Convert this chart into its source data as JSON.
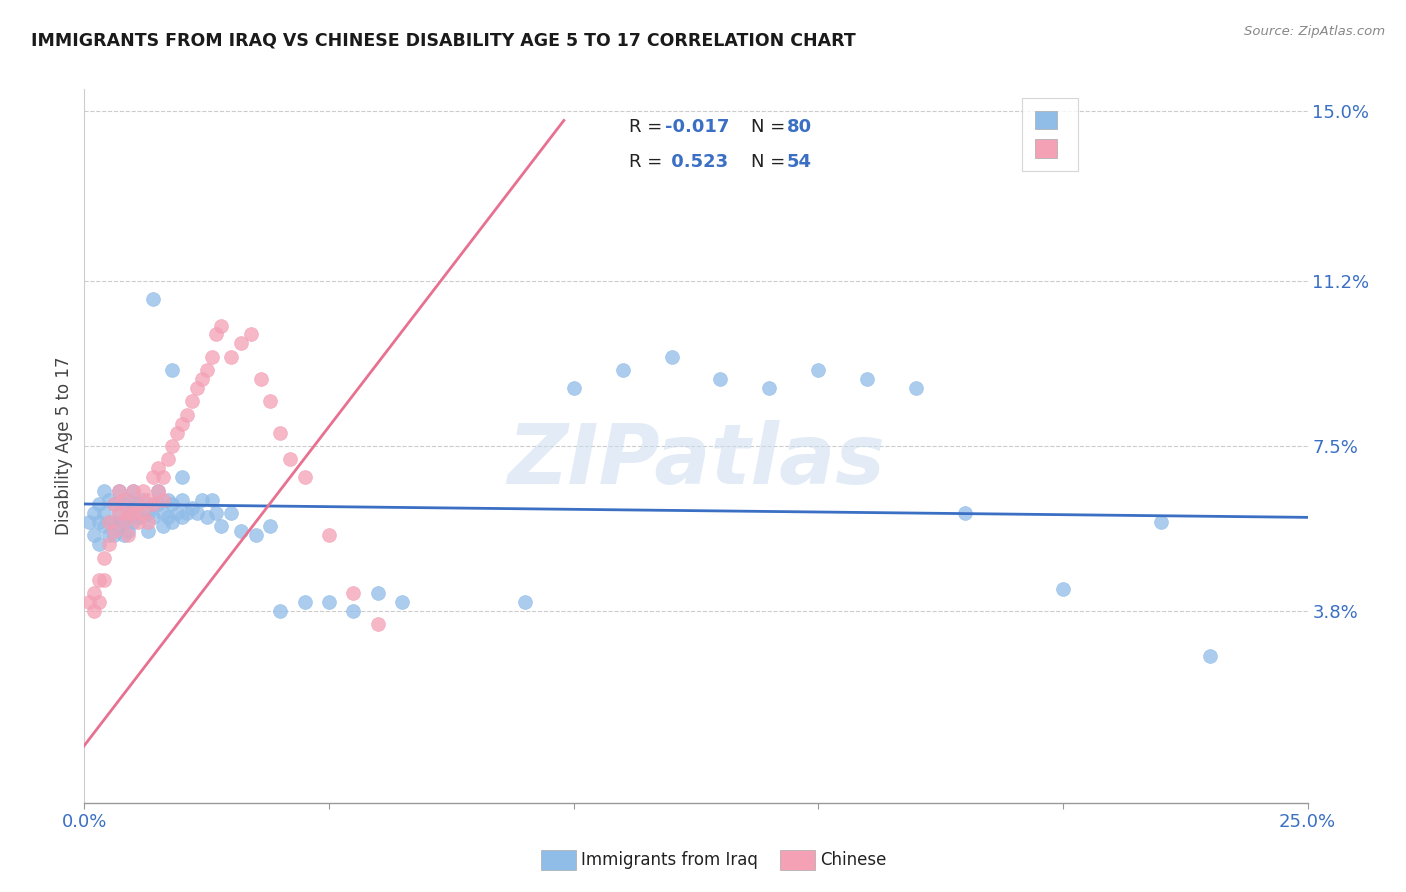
{
  "title": "IMMIGRANTS FROM IRAQ VS CHINESE DISABILITY AGE 5 TO 17 CORRELATION CHART",
  "source": "Source: ZipAtlas.com",
  "ylabel": "Disability Age 5 to 17",
  "xlim": [
    0.0,
    0.25
  ],
  "ylim": [
    -0.005,
    0.155
  ],
  "ytick_labels": [
    "3.8%",
    "7.5%",
    "11.2%",
    "15.0%"
  ],
  "ytick_positions": [
    0.038,
    0.075,
    0.112,
    0.15
  ],
  "xtick_positions": [
    0.0,
    0.05,
    0.1,
    0.15,
    0.2,
    0.25
  ],
  "watermark": "ZIPatlas",
  "iraq_color": "#90bce8",
  "chinese_color": "#f4a0b5",
  "iraq_line_color": "#3a6fc4",
  "chinese_line_color": "#e87090",
  "iraq_R": "-0.017",
  "iraq_N": "80",
  "chinese_R": "0.523",
  "chinese_N": "54",
  "iraq_scatter_x": [
    0.001,
    0.002,
    0.002,
    0.003,
    0.003,
    0.003,
    0.004,
    0.004,
    0.004,
    0.005,
    0.005,
    0.005,
    0.006,
    0.006,
    0.006,
    0.007,
    0.007,
    0.007,
    0.008,
    0.008,
    0.008,
    0.009,
    0.009,
    0.009,
    0.01,
    0.01,
    0.01,
    0.011,
    0.011,
    0.012,
    0.012,
    0.013,
    0.013,
    0.014,
    0.014,
    0.015,
    0.015,
    0.016,
    0.016,
    0.017,
    0.017,
    0.018,
    0.018,
    0.019,
    0.02,
    0.02,
    0.021,
    0.022,
    0.023,
    0.024,
    0.025,
    0.026,
    0.027,
    0.028,
    0.03,
    0.032,
    0.035,
    0.038,
    0.04,
    0.045,
    0.05,
    0.055,
    0.06,
    0.065,
    0.09,
    0.1,
    0.11,
    0.12,
    0.13,
    0.14,
    0.15,
    0.16,
    0.17,
    0.18,
    0.2,
    0.22,
    0.23,
    0.014,
    0.018,
    0.02
  ],
  "iraq_scatter_y": [
    0.058,
    0.06,
    0.055,
    0.062,
    0.058,
    0.053,
    0.065,
    0.06,
    0.057,
    0.063,
    0.058,
    0.055,
    0.062,
    0.058,
    0.055,
    0.065,
    0.06,
    0.057,
    0.062,
    0.058,
    0.055,
    0.063,
    0.059,
    0.056,
    0.065,
    0.061,
    0.058,
    0.062,
    0.059,
    0.063,
    0.059,
    0.06,
    0.056,
    0.062,
    0.059,
    0.065,
    0.062,
    0.06,
    0.057,
    0.063,
    0.059,
    0.062,
    0.058,
    0.06,
    0.063,
    0.059,
    0.06,
    0.061,
    0.06,
    0.063,
    0.059,
    0.063,
    0.06,
    0.057,
    0.06,
    0.056,
    0.055,
    0.057,
    0.038,
    0.04,
    0.04,
    0.038,
    0.042,
    0.04,
    0.04,
    0.088,
    0.092,
    0.095,
    0.09,
    0.088,
    0.092,
    0.09,
    0.088,
    0.06,
    0.043,
    0.058,
    0.028,
    0.108,
    0.092,
    0.068
  ],
  "chinese_scatter_x": [
    0.001,
    0.002,
    0.002,
    0.003,
    0.003,
    0.004,
    0.004,
    0.005,
    0.005,
    0.006,
    0.006,
    0.007,
    0.007,
    0.008,
    0.008,
    0.009,
    0.009,
    0.01,
    0.01,
    0.011,
    0.011,
    0.012,
    0.012,
    0.013,
    0.013,
    0.014,
    0.014,
    0.015,
    0.015,
    0.016,
    0.016,
    0.017,
    0.018,
    0.019,
    0.02,
    0.021,
    0.022,
    0.023,
    0.024,
    0.025,
    0.026,
    0.027,
    0.028,
    0.03,
    0.032,
    0.034,
    0.036,
    0.038,
    0.04,
    0.042,
    0.045,
    0.05,
    0.055,
    0.06
  ],
  "chinese_scatter_y": [
    0.04,
    0.042,
    0.038,
    0.045,
    0.04,
    0.05,
    0.045,
    0.058,
    0.053,
    0.062,
    0.056,
    0.065,
    0.06,
    0.063,
    0.058,
    0.06,
    0.055,
    0.065,
    0.06,
    0.062,
    0.058,
    0.065,
    0.06,
    0.063,
    0.058,
    0.068,
    0.062,
    0.07,
    0.065,
    0.068,
    0.063,
    0.072,
    0.075,
    0.078,
    0.08,
    0.082,
    0.085,
    0.088,
    0.09,
    0.092,
    0.095,
    0.1,
    0.102,
    0.095,
    0.098,
    0.1,
    0.09,
    0.085,
    0.078,
    0.072,
    0.068,
    0.055,
    0.042,
    0.035
  ],
  "iraq_trend_x": [
    0.0,
    0.25
  ],
  "iraq_trend_y": [
    0.062,
    0.059
  ],
  "chinese_trend_x": [
    -0.002,
    0.098
  ],
  "chinese_trend_y": [
    0.005,
    0.148
  ]
}
